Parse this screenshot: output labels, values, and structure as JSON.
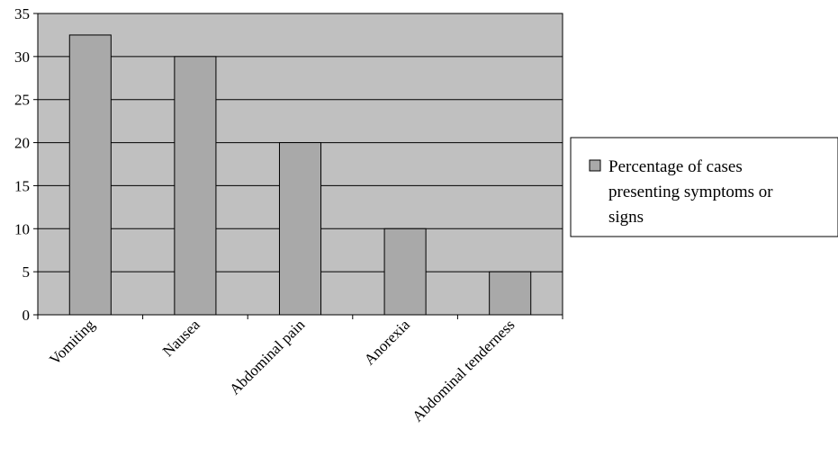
{
  "chart_data": {
    "type": "bar",
    "categories": [
      "Vomiting",
      "Nausea",
      "Abdominal pain",
      "Anorexia",
      "Abdominal tenderness"
    ],
    "series": [
      {
        "name": "Percentage of cases presenting symptoms or signs",
        "values": [
          32.5,
          30,
          20,
          10,
          5
        ]
      }
    ],
    "yticks": [
      "0",
      "5",
      "10",
      "15",
      "20",
      "25",
      "30",
      "35"
    ],
    "ylim": [
      0,
      35
    ],
    "grid": true,
    "legend_position": "right",
    "legend_lines": [
      "Percentage of cases",
      "presenting symptoms or",
      "signs"
    ],
    "colors": {
      "plot_background": "#c0c0c0",
      "bar_fill": "#a9a9a9",
      "bar_stroke": "#000000",
      "grid": "#000000"
    }
  }
}
